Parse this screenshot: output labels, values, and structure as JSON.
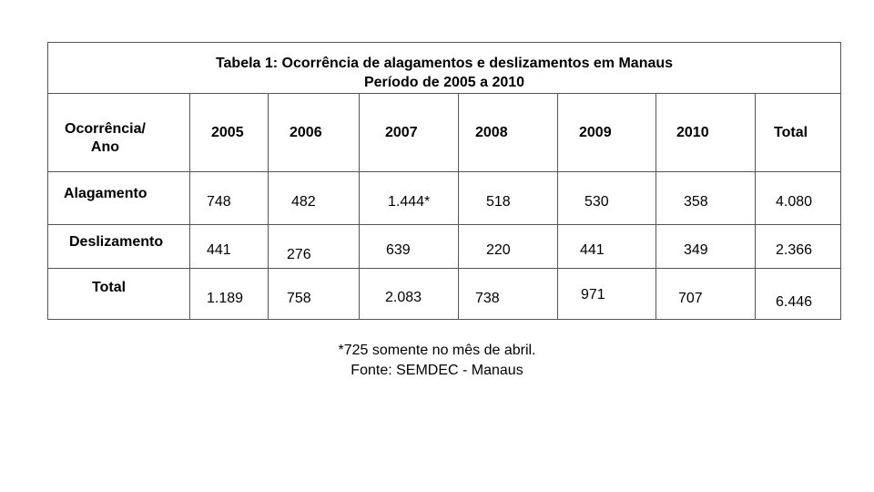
{
  "table": {
    "title_line1": "Tabela 1: Ocorrência de alagamentos e deslizamentos em Manaus",
    "title_line2": "Período de 2005 a 2010",
    "corner_line1": "Ocorrência/",
    "corner_line2": "Ano",
    "columns": [
      "2005",
      "2006",
      "2007",
      "2008",
      "2009",
      "2010",
      "Total"
    ],
    "rows": [
      {
        "label": "Alagamento",
        "values": [
          "748",
          "482",
          "1.444*",
          "518",
          "530",
          "358",
          "4.080"
        ]
      },
      {
        "label": "Deslizamento",
        "values": [
          "441",
          "276",
          "639",
          "220",
          "441",
          "349",
          "2.366"
        ]
      },
      {
        "label": "Total",
        "values": [
          "1.189",
          "758",
          "2.083",
          "738",
          "971",
          "707",
          "6.446"
        ]
      }
    ]
  },
  "footnote": "*725 somente no mês de abril.",
  "source": "Fonte: SEMDEC - Manaus"
}
